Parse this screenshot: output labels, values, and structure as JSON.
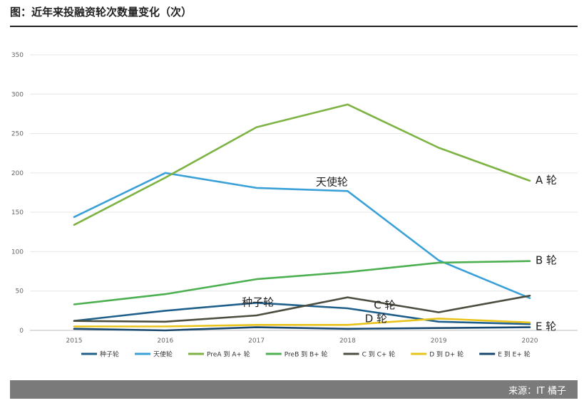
{
  "page": {
    "title": "图：近年来投融资轮次数量变化（次）",
    "source": "来源：IT 橘子"
  },
  "chart_data": {
    "type": "line",
    "title": "近年来投融资轮次数量变化（次）",
    "xlabel": "",
    "ylabel": "",
    "x": [
      "2015",
      "2016",
      "2017",
      "2018",
      "2019",
      "2020"
    ],
    "ylim": [
      0,
      350
    ],
    "yticks": [
      0,
      50,
      100,
      150,
      200,
      250,
      300,
      350
    ],
    "grid": true,
    "legend_position": "bottom",
    "series": [
      {
        "name": "种子轮",
        "color": "#1f5f8b",
        "values": [
          12,
          25,
          35,
          28,
          11,
          8
        ]
      },
      {
        "name": "天使轮",
        "color": "#3aa0d8",
        "values": [
          144,
          200,
          181,
          177,
          89,
          41
        ]
      },
      {
        "name": "PreA 到 A+ 轮",
        "color": "#7cb342",
        "values": [
          134,
          194,
          258,
          287,
          232,
          190
        ]
      },
      {
        "name": "PreB 到 B+ 轮",
        "color": "#4caf50",
        "values": [
          33,
          46,
          65,
          74,
          86,
          88
        ]
      },
      {
        "name": "C 到 C+ 轮",
        "color": "#4a4f3f",
        "values": [
          12,
          11,
          19,
          42,
          23,
          44
        ]
      },
      {
        "name": "D 到 D+ 轮",
        "color": "#e8c31a",
        "values": [
          5,
          5,
          7,
          7,
          15,
          10
        ]
      },
      {
        "name": "E 到 E+ 轮",
        "color": "#17476f",
        "values": [
          2,
          0,
          4,
          2,
          3,
          4
        ]
      }
    ],
    "annotations": [
      {
        "text": "A 轮",
        "series": "PreA 到 A+ 轮",
        "x": "2020",
        "y": 190
      },
      {
        "text": "天使轮",
        "series": "天使轮",
        "x": "2018",
        "y": 177
      },
      {
        "text": "B 轮",
        "series": "PreB 到 B+ 轮",
        "x": "2020",
        "y": 88
      },
      {
        "text": "种子轮",
        "series": "种子轮",
        "x": "2017",
        "y": 35
      },
      {
        "text": "C 轮",
        "series": "C 到 C+ 轮",
        "x": "2018",
        "y": 42
      },
      {
        "text": "D 轮",
        "series": "D 到 D+ 轮",
        "x": "2018",
        "y": 7
      },
      {
        "text": "E 轮",
        "series": "E 到 E+ 轮",
        "x": "2020",
        "y": 4
      }
    ]
  }
}
